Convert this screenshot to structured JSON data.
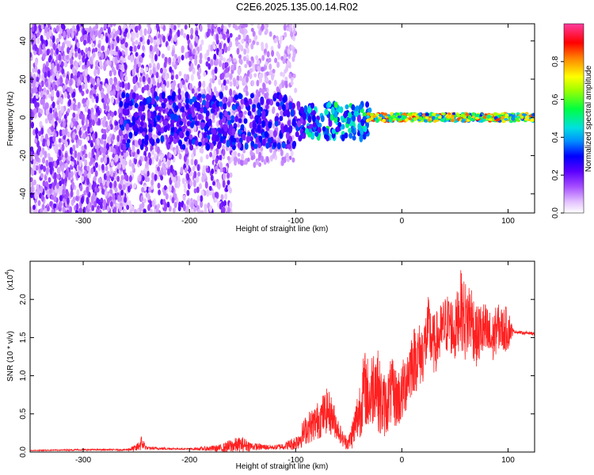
{
  "page": {
    "title": "C2E6.2025.135.00.14.R02"
  },
  "colorbar": {
    "label": "Normalized spectral amplitude",
    "ticks": [
      "0.0",
      "0.2",
      "0.4",
      "0.6",
      "0.8"
    ],
    "tick_values": [
      0.0,
      0.2,
      0.4,
      0.6,
      0.8
    ],
    "range": [
      0,
      1
    ],
    "colors": [
      "#ffffff",
      "#cf9bff",
      "#6a00ff",
      "#0000ff",
      "#00c8ff",
      "#00ff60",
      "#e8ff00",
      "#ff8000",
      "#ff0000",
      "#ff3ca0"
    ]
  },
  "chart_data": [
    {
      "type": "heatmap",
      "title": "C2E6.2025.135.00.14.R02",
      "xlabel": "Height of straight line (km)",
      "ylabel": "Frequency (Hz)",
      "xlim": [
        -350,
        125
      ],
      "ylim": [
        -50,
        49
      ],
      "xticks": [
        -300,
        -200,
        -100,
        0,
        100
      ],
      "xtick_labels": [
        "-300",
        "-200",
        "-100",
        "0",
        "100"
      ],
      "yticks": [
        -40,
        -20,
        0,
        20,
        40
      ],
      "ytick_labels": [
        "-40",
        "-20",
        "0",
        "20",
        "40"
      ],
      "colorbar_label": "Normalized spectral amplitude",
      "colorbar_range": [
        0,
        1
      ],
      "description_regions": [
        {
          "x_range": [
            -350,
            -265
          ],
          "freq_range": [
            -50,
            49
          ],
          "amplitude": 0.15
        },
        {
          "x_range": [
            -265,
            -160
          ],
          "freq_range": [
            -50,
            49
          ],
          "amplitude": 0.12
        },
        {
          "x_range": [
            -160,
            -100
          ],
          "freq_range": [
            -20,
            49
          ],
          "amplitude": 0.08
        },
        {
          "x_range": [
            -100,
            -30
          ],
          "freq_range": [
            -15,
            8
          ],
          "amplitude": 0.3
        },
        {
          "x_range": [
            -30,
            125
          ],
          "freq_range": [
            -2,
            2
          ],
          "amplitude": 0.6
        }
      ]
    },
    {
      "type": "line",
      "xlabel": "Height of straight line (km)",
      "ylabel": "SNR (10 * v/v)",
      "y_multiplier_label": "(x10",
      "y_multiplier_exp": "4",
      "y_multiplier_close": ")",
      "xlim": [
        -350,
        125
      ],
      "ylim": [
        0,
        2.5
      ],
      "xticks": [
        -300,
        -200,
        -100,
        0,
        100
      ],
      "xtick_labels": [
        "-300",
        "-200",
        "-100",
        "0",
        "100"
      ],
      "yticks": [
        0.0,
        0.5,
        1.0,
        1.5,
        2.0
      ],
      "ytick_labels": [
        "0.0",
        "0.5",
        "1.0",
        "1.5",
        "2.0"
      ],
      "series": [
        {
          "color": "#ff2020",
          "x": [
            -350,
            -300,
            -260,
            -250,
            -245,
            -240,
            -200,
            -170,
            -160,
            -150,
            -140,
            -120,
            -110,
            -100,
            -95,
            -90,
            -80,
            -70,
            -65,
            -60,
            -55,
            -50,
            -45,
            -40,
            -35,
            -30,
            -25,
            -20,
            -15,
            -10,
            -5,
            0,
            5,
            10,
            15,
            20,
            25,
            30,
            35,
            40,
            45,
            50,
            55,
            60,
            65,
            70,
            75,
            80,
            85,
            90,
            95,
            100,
            105,
            110,
            115,
            120,
            125
          ],
          "y": [
            0.02,
            0.03,
            0.03,
            0.05,
            0.12,
            0.05,
            0.04,
            0.05,
            0.08,
            0.1,
            0.07,
            0.06,
            0.08,
            0.12,
            0.2,
            0.3,
            0.4,
            0.55,
            0.45,
            0.3,
            0.15,
            0.12,
            0.3,
            0.55,
            0.85,
            0.7,
            1.0,
            0.65,
            0.6,
            0.8,
            0.7,
            0.75,
            1.0,
            1.2,
            1.25,
            1.3,
            1.6,
            1.4,
            1.5,
            1.65,
            1.7,
            1.55,
            1.9,
            1.7,
            1.8,
            1.5,
            1.6,
            1.55,
            1.45,
            1.65,
            1.6,
            1.62,
            1.58,
            1.57,
            1.56,
            1.56,
            1.55
          ],
          "noise_amplitude": [
            0.005,
            0.01,
            0.01,
            0.05,
            0.1,
            0.02,
            0.01,
            0.05,
            0.1,
            0.1,
            0.05,
            0.03,
            0.05,
            0.1,
            0.15,
            0.2,
            0.25,
            0.3,
            0.25,
            0.15,
            0.1,
            0.1,
            0.25,
            0.4,
            0.5,
            0.5,
            0.55,
            0.5,
            0.4,
            0.45,
            0.4,
            0.4,
            0.45,
            0.45,
            0.45,
            0.4,
            0.45,
            0.4,
            0.4,
            0.4,
            0.4,
            0.4,
            0.5,
            0.55,
            0.5,
            0.4,
            0.4,
            0.4,
            0.35,
            0.3,
            0.3,
            0.3,
            0.02,
            0.02,
            0.02,
            0.02,
            0.02
          ]
        }
      ]
    }
  ]
}
